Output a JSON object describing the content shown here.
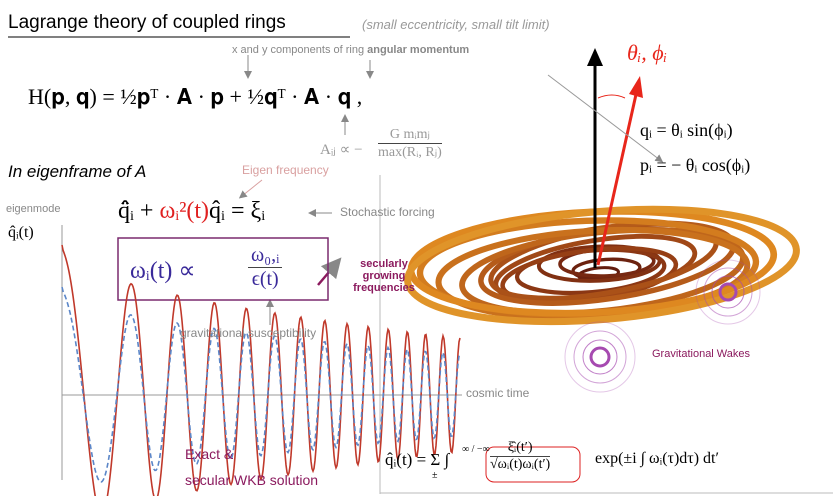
{
  "header": {
    "title": "Lagrange theory of coupled rings",
    "subtitle": "(small eccentricity, small tilt limit)"
  },
  "hamiltonian": {
    "note_plain": "x and y components of ring",
    "note_bold": "angular momentum",
    "equation": "H(𝐩, 𝐪) = ½𝐩ᵀ · 𝐀 · 𝐩 + ½𝐪ᵀ · 𝐀 · 𝐪 ,",
    "coupling_lhs": "Aᵢⱼ ∝ −",
    "coupling_num": "G mᵢmⱼ",
    "coupling_den": "max(Rᵢ, Rⱼ)"
  },
  "eigenframe": {
    "heading": "In eigenframe  of A",
    "eigen_label": "Eigen frequency",
    "mode_label": "eigenmode",
    "mode_symbol": "q̂ᵢ(t)",
    "eq_left": "q̂̈ᵢ +",
    "eq_freq": "ωᵢ²(t)",
    "eq_right": "q̂ᵢ = ξᵢ",
    "forcing_label": "Stochastic forcing"
  },
  "scaling": {
    "lhs": "ωᵢ(t) ∝",
    "num": "ω₀,ᵢ",
    "den": "ϵ(t)",
    "growth_label": "secularly growing frequencies",
    "susceptibility_label": "gravitational susceptibility"
  },
  "plot": {
    "time_label": "cosmic time",
    "legend_1": "Exact &",
    "legend_2": "secular WKB solution"
  },
  "rings": {
    "angle_label": "θᵢ, ϕᵢ",
    "q_def": "qᵢ =    θᵢ sin(ϕᵢ)",
    "p_def": "pᵢ = −   θᵢ cos(ϕᵢ)",
    "wakes_label": "Gravitational Wakes"
  },
  "solution": {
    "lhs": "q̂ᵢ(t) = Σ ∫",
    "sum_sub": "±",
    "int_lims": "∞ / −∞",
    "num": "ξ̂ᵢ(t′)",
    "den": "√ωᵢ(t)ωᵢ(t′)",
    "rhs": "exp(±i ∫ ωᵢ(τ)dτ) dt′"
  }
}
